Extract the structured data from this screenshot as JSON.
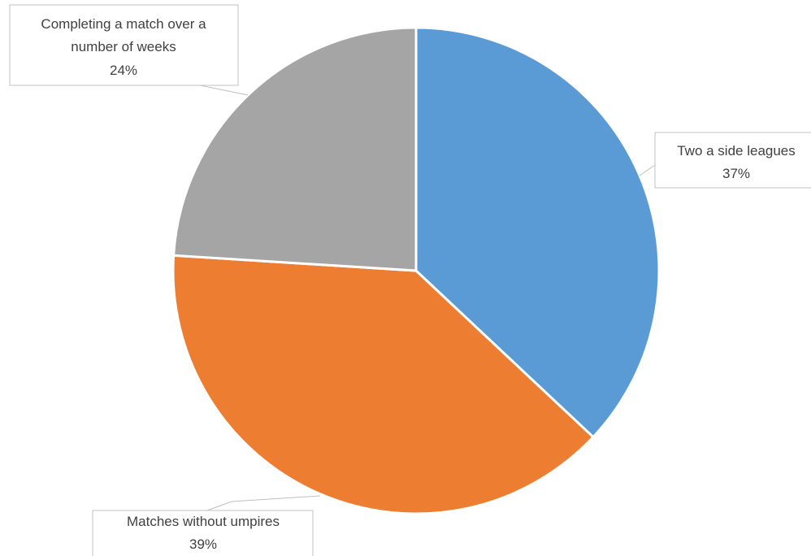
{
  "chart_data": {
    "type": "pie",
    "title": "",
    "slices": [
      {
        "label": "Two a side leagues",
        "value": 37,
        "display": "37%",
        "color": "#5b9bd5"
      },
      {
        "label": "Matches without umpires",
        "value": 39,
        "display": "39%",
        "color": "#ed7d31"
      },
      {
        "label": "Completing a match over a number of weeks",
        "value": 24,
        "display": "24%",
        "color": "#a5a5a5"
      }
    ],
    "start_angle": "12 o'clock",
    "direction": "clockwise",
    "legend": "none",
    "data_labels": "callouts"
  },
  "labels": {
    "two_a_side": {
      "lines": [
        "Two a side leagues"
      ],
      "percent": "37%"
    },
    "matches_without_umpires": {
      "lines": [
        "Matches without umpires"
      ],
      "percent": "39%"
    },
    "completing_match": {
      "lines": [
        "Completing a match over a",
        "number of weeks"
      ],
      "percent": "24%"
    }
  }
}
